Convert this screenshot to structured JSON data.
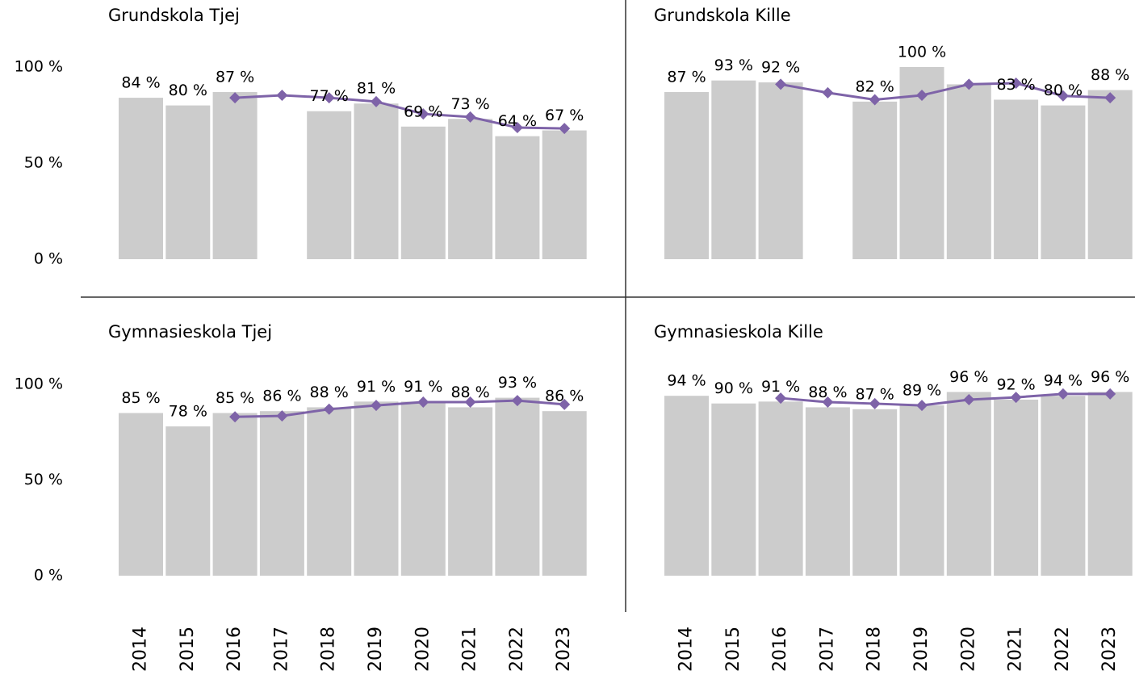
{
  "chart_data": [
    {
      "type": "bar",
      "title": "Grundskola Tjej",
      "ylim": [
        0,
        100
      ],
      "yticks": [
        {
          "value": 0,
          "label": "0 %"
        },
        {
          "value": 50,
          "label": "50 %"
        },
        {
          "value": 100,
          "label": "100 %"
        }
      ],
      "series": [
        {
          "color": "#cccccc",
          "values": [
            84,
            80,
            87,
            null,
            77,
            81,
            69,
            73,
            64,
            67
          ],
          "value_labels": [
            "84 %",
            "80 %",
            "87 %",
            null,
            "77 %",
            "81 %",
            "69 %",
            "73 %",
            "64 %",
            "67 %"
          ]
        },
        {
          "type": "line",
          "color": "#7e63a8",
          "values": [
            null,
            null,
            84,
            85.3,
            84,
            82,
            75.6,
            74,
            68.5,
            68
          ]
        }
      ]
    },
    {
      "type": "bar",
      "title": "Grundskola Kille",
      "ylim": [
        0,
        100
      ],
      "series": [
        {
          "color": "#cccccc",
          "values": [
            87,
            93,
            92,
            null,
            82,
            100,
            91,
            83,
            80,
            88
          ],
          "value_labels": [
            "87 %",
            "93 %",
            "92 %",
            null,
            "82 %",
            "100 %",
            null,
            "83 %",
            "80 %",
            "88 %"
          ]
        },
        {
          "type": "line",
          "color": "#7e63a8",
          "values": [
            null,
            null,
            91,
            86.6,
            83,
            85.3,
            91,
            91.6,
            85,
            84
          ]
        }
      ]
    },
    {
      "type": "bar",
      "title": "Gymnasieskola Tjej",
      "ylim": [
        0,
        100
      ],
      "yticks": [
        {
          "value": 0,
          "label": "0 %"
        },
        {
          "value": 50,
          "label": "50 %"
        },
        {
          "value": 100,
          "label": "100 %"
        }
      ],
      "categories": [
        "2014",
        "2015",
        "2016",
        "2017",
        "2018",
        "2019",
        "2020",
        "2021",
        "2022",
        "2023"
      ],
      "series": [
        {
          "color": "#cccccc",
          "values": [
            85,
            78,
            85,
            86,
            88,
            91,
            91,
            88,
            93,
            86
          ],
          "value_labels": [
            "85 %",
            "78 %",
            "85 %",
            "86 %",
            "88 %",
            "91 %",
            "91 %",
            "88 %",
            "93 %",
            "86 %"
          ]
        },
        {
          "type": "line",
          "color": "#7e63a8",
          "values": [
            null,
            null,
            83,
            83.5,
            87,
            89,
            90.7,
            90.7,
            91.5,
            89.5
          ]
        }
      ]
    },
    {
      "type": "bar",
      "title": "Gymnasieskola Kille",
      "ylim": [
        0,
        100
      ],
      "categories": [
        "2014",
        "2015",
        "2016",
        "2017",
        "2018",
        "2019",
        "2020",
        "2021",
        "2022",
        "2023"
      ],
      "series": [
        {
          "color": "#cccccc",
          "values": [
            94,
            90,
            91,
            88,
            87,
            89,
            96,
            92,
            94,
            96
          ],
          "value_labels": [
            "94 %",
            "90 %",
            "91 %",
            "88 %",
            "87 %",
            "89 %",
            "96 %",
            "92 %",
            "94 %",
            "96 %"
          ]
        },
        {
          "type": "line",
          "color": "#7e63a8",
          "values": [
            null,
            null,
            92.8,
            90.7,
            89.9,
            89,
            92,
            93.2,
            95,
            95
          ]
        }
      ]
    }
  ]
}
